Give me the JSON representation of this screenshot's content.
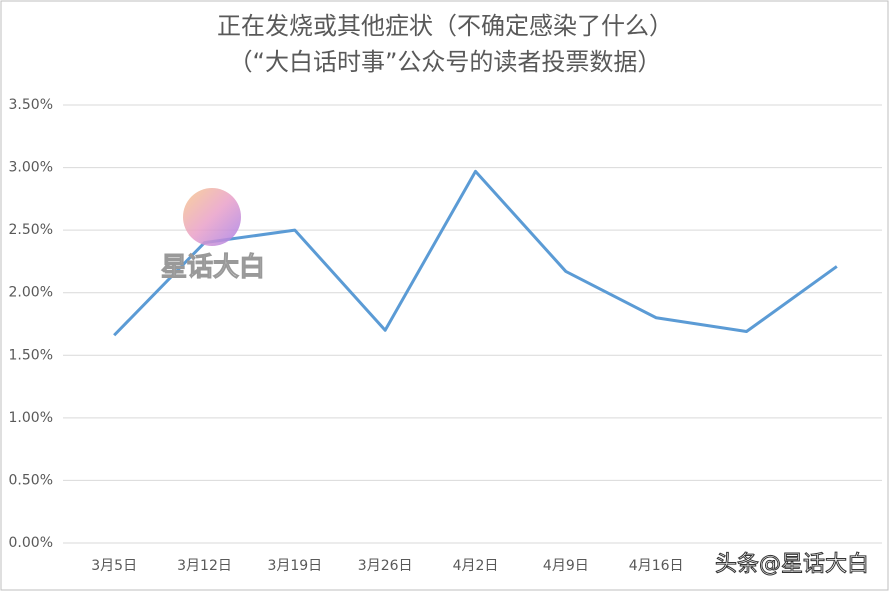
{
  "chart_data": {
    "type": "line",
    "title": "正在发烧或其他症状（不确定感染了什么）",
    "subtitle": "（“大白话时事”公众号的读者投票数据）",
    "categories": [
      "3月5日",
      "3月12日",
      "3月19日",
      "3月26日",
      "4月2日",
      "4月9日",
      "4月16日",
      null,
      null
    ],
    "series": [
      {
        "name": "正在发烧或其他症状",
        "color": "#5b9bd5",
        "values": [
          1.66,
          2.4,
          2.5,
          1.7,
          2.97,
          2.17,
          1.8,
          1.69,
          2.21
        ]
      }
    ],
    "ylim": [
      0,
      3.5
    ],
    "yticks": [
      {
        "value": 0,
        "label": "0.00%"
      },
      {
        "value": 0.5,
        "label": "0.50%"
      },
      {
        "value": 1,
        "label": "1.00%"
      },
      {
        "value": 1.5,
        "label": "1.50%"
      },
      {
        "value": 2,
        "label": "2.00%"
      },
      {
        "value": 2.5,
        "label": "2.50%"
      },
      {
        "value": 3,
        "label": "3.00%"
      },
      {
        "value": 3.5,
        "label": "3.50%"
      }
    ],
    "grid": true
  },
  "watermarks": [
    "星话大白",
    "头条@星话大白"
  ]
}
